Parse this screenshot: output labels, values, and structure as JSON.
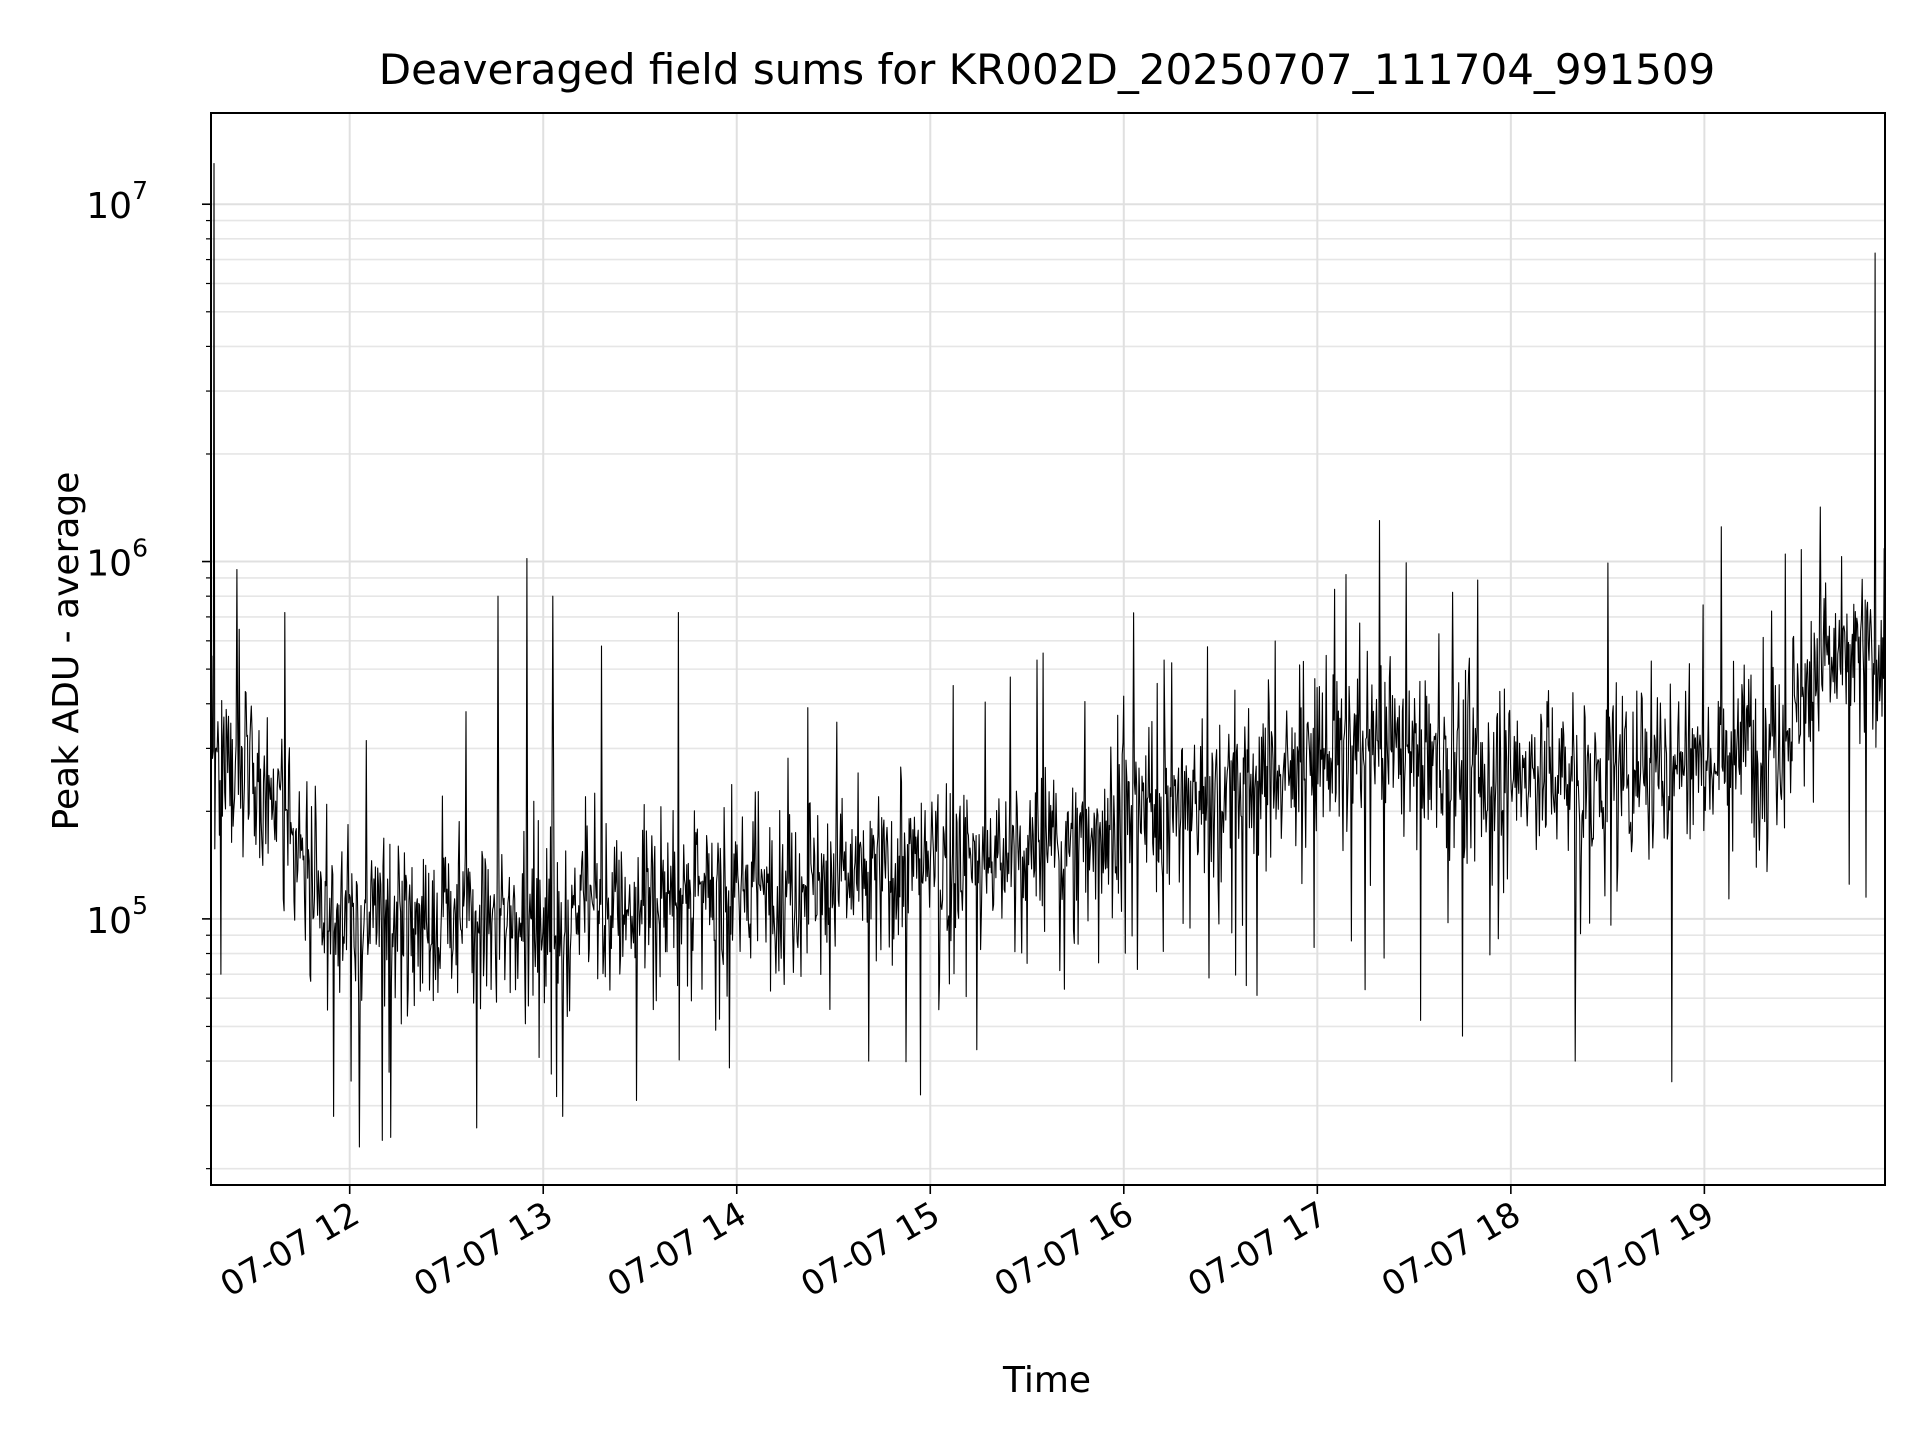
{
  "chart_data": {
    "type": "line",
    "title": "Deaveraged field sums for KR002D_20250707_111704_991509",
    "xlabel": "Time",
    "ylabel": "Peak ADU - average",
    "yscale": "log",
    "grid": true,
    "legend": "none",
    "xlim": [
      "2025-07-07 11:17",
      "2025-07-07 19:56"
    ],
    "ylim": [
      18000,
      18000000
    ],
    "x_ticks": [
      "07-07 12",
      "07-07 13",
      "07-07 14",
      "07-07 15",
      "07-07 16",
      "07-07 17",
      "07-07 18",
      "07-07 19"
    ],
    "x_tick_times": [
      "2025-07-07 12:00",
      "2025-07-07 13:00",
      "2025-07-07 14:00",
      "2025-07-07 15:00",
      "2025-07-07 16:00",
      "2025-07-07 17:00",
      "2025-07-07 18:00",
      "2025-07-07 19:00"
    ],
    "y_ticks": [
      {
        "base": "10",
        "exp": "5",
        "value": 100000
      },
      {
        "base": "10",
        "exp": "6",
        "value": 1000000
      },
      {
        "base": "10",
        "exp": "7",
        "value": 10000000
      }
    ],
    "series": [
      {
        "color": "#000000",
        "baseline": {
          "times": [
            "2025-07-07 11:17",
            "2025-07-07 11:30",
            "2025-07-07 11:45",
            "2025-07-07 12:00",
            "2025-07-07 12:30",
            "2025-07-07 13:00",
            "2025-07-07 13:30",
            "2025-07-07 14:00",
            "2025-07-07 14:30",
            "2025-07-07 15:00",
            "2025-07-07 15:30",
            "2025-07-07 16:00",
            "2025-07-07 16:30",
            "2025-07-07 17:00",
            "2025-07-07 17:30",
            "2025-07-07 18:00",
            "2025-07-07 18:30",
            "2025-07-07 19:00",
            "2025-07-07 19:25",
            "2025-07-07 19:35",
            "2025-07-07 19:56"
          ],
          "values": [
            300000,
            260000,
            160000,
            95000,
            100000,
            105000,
            110000,
            120000,
            130000,
            140000,
            150000,
            190000,
            230000,
            290000,
            300000,
            260000,
            250000,
            290000,
            330000,
            520000,
            560000
          ]
        },
        "spikes": [
          {
            "time": "2025-07-07 11:18",
            "value": 13000000
          },
          {
            "time": "2025-07-07 11:20",
            "value": 70000
          },
          {
            "time": "2025-07-07 11:25",
            "value": 950000
          },
          {
            "time": "2025-07-07 11:40",
            "value": 720000
          },
          {
            "time": "2025-07-07 11:55",
            "value": 28000
          },
          {
            "time": "2025-07-07 12:03",
            "value": 23000
          },
          {
            "time": "2025-07-07 12:10",
            "value": 24000
          },
          {
            "time": "2025-07-07 12:36",
            "value": 380000
          },
          {
            "time": "2025-07-07 12:46",
            "value": 800000
          },
          {
            "time": "2025-07-07 12:55",
            "value": 1020000
          },
          {
            "time": "2025-07-07 13:03",
            "value": 800000
          },
          {
            "time": "2025-07-07 13:06",
            "value": 28000
          },
          {
            "time": "2025-07-07 13:18",
            "value": 580000
          },
          {
            "time": "2025-07-07 13:42",
            "value": 720000
          },
          {
            "time": "2025-07-07 14:22",
            "value": 390000
          },
          {
            "time": "2025-07-07 14:41",
            "value": 40000
          },
          {
            "time": "2025-07-07 15:07",
            "value": 450000
          },
          {
            "time": "2025-07-07 15:33",
            "value": 530000
          },
          {
            "time": "2025-07-07 16:00",
            "value": 420000
          },
          {
            "time": "2025-07-07 17:09",
            "value": 920000
          },
          {
            "time": "2025-07-07 17:32",
            "value": 52000
          },
          {
            "time": "2025-07-07 17:42",
            "value": 820000
          },
          {
            "time": "2025-07-07 17:45",
            "value": 47000
          },
          {
            "time": "2025-07-07 18:20",
            "value": 40000
          },
          {
            "time": "2025-07-07 18:50",
            "value": 35000
          },
          {
            "time": "2025-07-07 19:25",
            "value": 1050000
          },
          {
            "time": "2025-07-07 19:30",
            "value": 1080000
          },
          {
            "time": "2025-07-07 19:45",
            "value": 125000
          },
          {
            "time": "2025-07-07 19:50",
            "value": 115000
          },
          {
            "time": "2025-07-07 19:53",
            "value": 7300000
          }
        ]
      }
    ]
  }
}
